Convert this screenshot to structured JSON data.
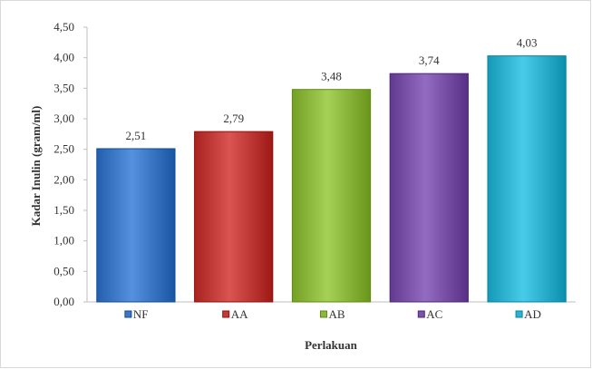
{
  "chart_data": {
    "type": "bar",
    "categories": [
      "NF",
      "AA",
      "AB",
      "AC",
      "AD"
    ],
    "values": [
      2.51,
      2.79,
      3.48,
      3.74,
      4.03
    ],
    "value_labels": [
      "2,51",
      "2,79",
      "3,48",
      "3,74",
      "4,03"
    ],
    "colors": [
      "#3c78c6",
      "#c13b38",
      "#8cb83e",
      "#7a53a8",
      "#2eb2cf"
    ],
    "ylabel": "Kadar Inulin (gram/ml)",
    "xlabel": "Perlakuan",
    "ylim": [
      0,
      4.5
    ],
    "yticks": [
      0,
      0.5,
      1,
      1.5,
      2,
      2.5,
      3,
      3.5,
      4,
      4.5
    ],
    "ytick_labels": [
      "0,00",
      "0,50",
      "1,00",
      "1,50",
      "2,00",
      "2,50",
      "3,00",
      "3,50",
      "4,00",
      "4,50"
    ],
    "grid": false,
    "legend_position": "bottom"
  }
}
